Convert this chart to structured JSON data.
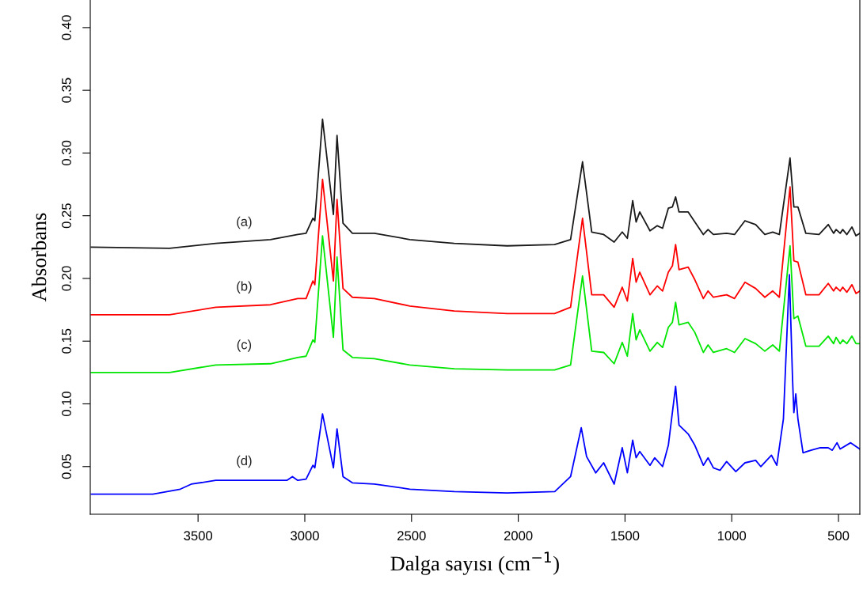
{
  "chart_data": {
    "type": "line",
    "xlabel": "Dalga sayısı (cm$^{−1}$)",
    "ylabel": "Absorbans",
    "xlim": [
      4005,
      400
    ],
    "ylim": [
      0.012,
      0.422
    ],
    "xticks": [
      3500,
      3000,
      2500,
      2000,
      1500,
      1000,
      500
    ],
    "yticks": [
      {
        "value": 0.05,
        "label": "0.05"
      },
      {
        "value": 0.1,
        "label": "0.10"
      },
      {
        "value": 0.15,
        "label": "0.15"
      },
      {
        "value": 0.2,
        "label": "0.20"
      },
      {
        "value": 0.25,
        "label": "0.25"
      },
      {
        "value": 0.3,
        "label": "0.30"
      },
      {
        "value": 0.35,
        "label": "0.35"
      },
      {
        "value": 0.4,
        "label": "0.40"
      }
    ],
    "grid": false,
    "legend": false,
    "marker": "none",
    "line_style": "solid",
    "series": [
      {
        "name": "(a)",
        "color": "#1a1a1a",
        "x": [
          4000,
          3634,
          3417,
          3161,
          3033,
          2994,
          2962,
          2953,
          2917,
          2866,
          2849,
          2821,
          2777,
          2674,
          2508,
          2300,
          2052,
          1830,
          1755,
          1699,
          1656,
          1600,
          1551,
          1513,
          1489,
          1464,
          1448,
          1431,
          1383,
          1349,
          1324,
          1297,
          1278,
          1263,
          1247,
          1204,
          1173,
          1133,
          1111,
          1086,
          1024,
          987,
          938,
          888,
          845,
          808,
          777,
          727,
          709,
          690,
          653,
          591,
          548,
          523,
          511,
          492,
          480,
          461,
          437,
          418,
          400
        ],
        "values": [
          0.225,
          0.224,
          0.228,
          0.231,
          0.235,
          0.236,
          0.248,
          0.246,
          0.327,
          0.251,
          0.314,
          0.244,
          0.236,
          0.236,
          0.231,
          0.228,
          0.226,
          0.227,
          0.231,
          0.293,
          0.237,
          0.235,
          0.229,
          0.237,
          0.232,
          0.262,
          0.245,
          0.253,
          0.238,
          0.242,
          0.24,
          0.256,
          0.257,
          0.265,
          0.253,
          0.253,
          0.245,
          0.235,
          0.239,
          0.235,
          0.236,
          0.235,
          0.246,
          0.243,
          0.235,
          0.237,
          0.235,
          0.296,
          0.257,
          0.257,
          0.236,
          0.235,
          0.243,
          0.236,
          0.239,
          0.236,
          0.239,
          0.235,
          0.241,
          0.234,
          0.236
        ]
      },
      {
        "name": "(b)",
        "color": "#ff0000",
        "x": [
          4000,
          3634,
          3417,
          3161,
          3033,
          2994,
          2962,
          2953,
          2917,
          2866,
          2849,
          2821,
          2777,
          2674,
          2508,
          2300,
          2052,
          1830,
          1755,
          1699,
          1656,
          1600,
          1551,
          1513,
          1489,
          1464,
          1448,
          1431,
          1383,
          1349,
          1324,
          1297,
          1278,
          1263,
          1247,
          1204,
          1173,
          1133,
          1111,
          1086,
          1024,
          987,
          938,
          888,
          845,
          808,
          777,
          727,
          709,
          690,
          653,
          591,
          548,
          523,
          511,
          492,
          480,
          461,
          437,
          418,
          400
        ],
        "values": [
          0.171,
          0.171,
          0.177,
          0.179,
          0.184,
          0.184,
          0.198,
          0.195,
          0.279,
          0.198,
          0.263,
          0.192,
          0.185,
          0.184,
          0.178,
          0.174,
          0.172,
          0.172,
          0.177,
          0.248,
          0.187,
          0.187,
          0.177,
          0.193,
          0.182,
          0.216,
          0.197,
          0.205,
          0.187,
          0.194,
          0.19,
          0.205,
          0.21,
          0.227,
          0.207,
          0.209,
          0.199,
          0.184,
          0.19,
          0.185,
          0.187,
          0.184,
          0.197,
          0.192,
          0.185,
          0.19,
          0.185,
          0.273,
          0.214,
          0.213,
          0.187,
          0.187,
          0.196,
          0.19,
          0.193,
          0.19,
          0.193,
          0.189,
          0.195,
          0.188,
          0.19
        ]
      },
      {
        "name": "(c)",
        "color": "#00e600",
        "x": [
          4000,
          3634,
          3417,
          3161,
          3033,
          2994,
          2962,
          2953,
          2917,
          2866,
          2849,
          2821,
          2777,
          2674,
          2508,
          2300,
          2052,
          1830,
          1755,
          1699,
          1656,
          1600,
          1551,
          1513,
          1489,
          1464,
          1448,
          1431,
          1383,
          1349,
          1324,
          1297,
          1278,
          1263,
          1247,
          1204,
          1173,
          1133,
          1111,
          1086,
          1024,
          987,
          938,
          888,
          845,
          808,
          777,
          727,
          709,
          690,
          653,
          591,
          548,
          523,
          511,
          492,
          480,
          461,
          437,
          418,
          400
        ],
        "values": [
          0.125,
          0.125,
          0.131,
          0.132,
          0.137,
          0.138,
          0.151,
          0.149,
          0.234,
          0.153,
          0.217,
          0.143,
          0.137,
          0.136,
          0.131,
          0.128,
          0.127,
          0.127,
          0.131,
          0.202,
          0.142,
          0.141,
          0.132,
          0.149,
          0.138,
          0.172,
          0.151,
          0.159,
          0.142,
          0.149,
          0.145,
          0.161,
          0.165,
          0.181,
          0.163,
          0.165,
          0.157,
          0.141,
          0.147,
          0.141,
          0.144,
          0.141,
          0.152,
          0.148,
          0.142,
          0.147,
          0.142,
          0.226,
          0.168,
          0.17,
          0.146,
          0.146,
          0.154,
          0.148,
          0.153,
          0.148,
          0.151,
          0.148,
          0.154,
          0.148,
          0.148
        ]
      },
      {
        "name": "(d)",
        "color": "#0000ff",
        "x": [
          4000,
          3712,
          3583,
          3532,
          3417,
          3161,
          3084,
          3058,
          3033,
          2994,
          2962,
          2953,
          2917,
          2866,
          2849,
          2821,
          2777,
          2674,
          2508,
          2300,
          2052,
          1829,
          1755,
          1705,
          1680,
          1637,
          1600,
          1551,
          1513,
          1489,
          1464,
          1448,
          1431,
          1383,
          1361,
          1324,
          1297,
          1263,
          1247,
          1204,
          1173,
          1133,
          1111,
          1086,
          1055,
          1024,
          981,
          938,
          888,
          864,
          814,
          789,
          758,
          730,
          715,
          709,
          700,
          690,
          666,
          629,
          585,
          548,
          529,
          507,
          492,
          443,
          400
        ],
        "values": [
          0.028,
          0.028,
          0.032,
          0.036,
          0.039,
          0.039,
          0.039,
          0.042,
          0.039,
          0.04,
          0.051,
          0.049,
          0.092,
          0.049,
          0.08,
          0.042,
          0.037,
          0.036,
          0.032,
          0.03,
          0.029,
          0.03,
          0.042,
          0.081,
          0.058,
          0.045,
          0.053,
          0.036,
          0.065,
          0.045,
          0.071,
          0.057,
          0.062,
          0.051,
          0.057,
          0.05,
          0.067,
          0.114,
          0.083,
          0.076,
          0.067,
          0.051,
          0.057,
          0.049,
          0.047,
          0.054,
          0.046,
          0.053,
          0.055,
          0.05,
          0.059,
          0.051,
          0.088,
          0.203,
          0.119,
          0.093,
          0.108,
          0.088,
          0.061,
          0.063,
          0.065,
          0.065,
          0.063,
          0.069,
          0.064,
          0.069,
          0.064
        ]
      }
    ]
  }
}
